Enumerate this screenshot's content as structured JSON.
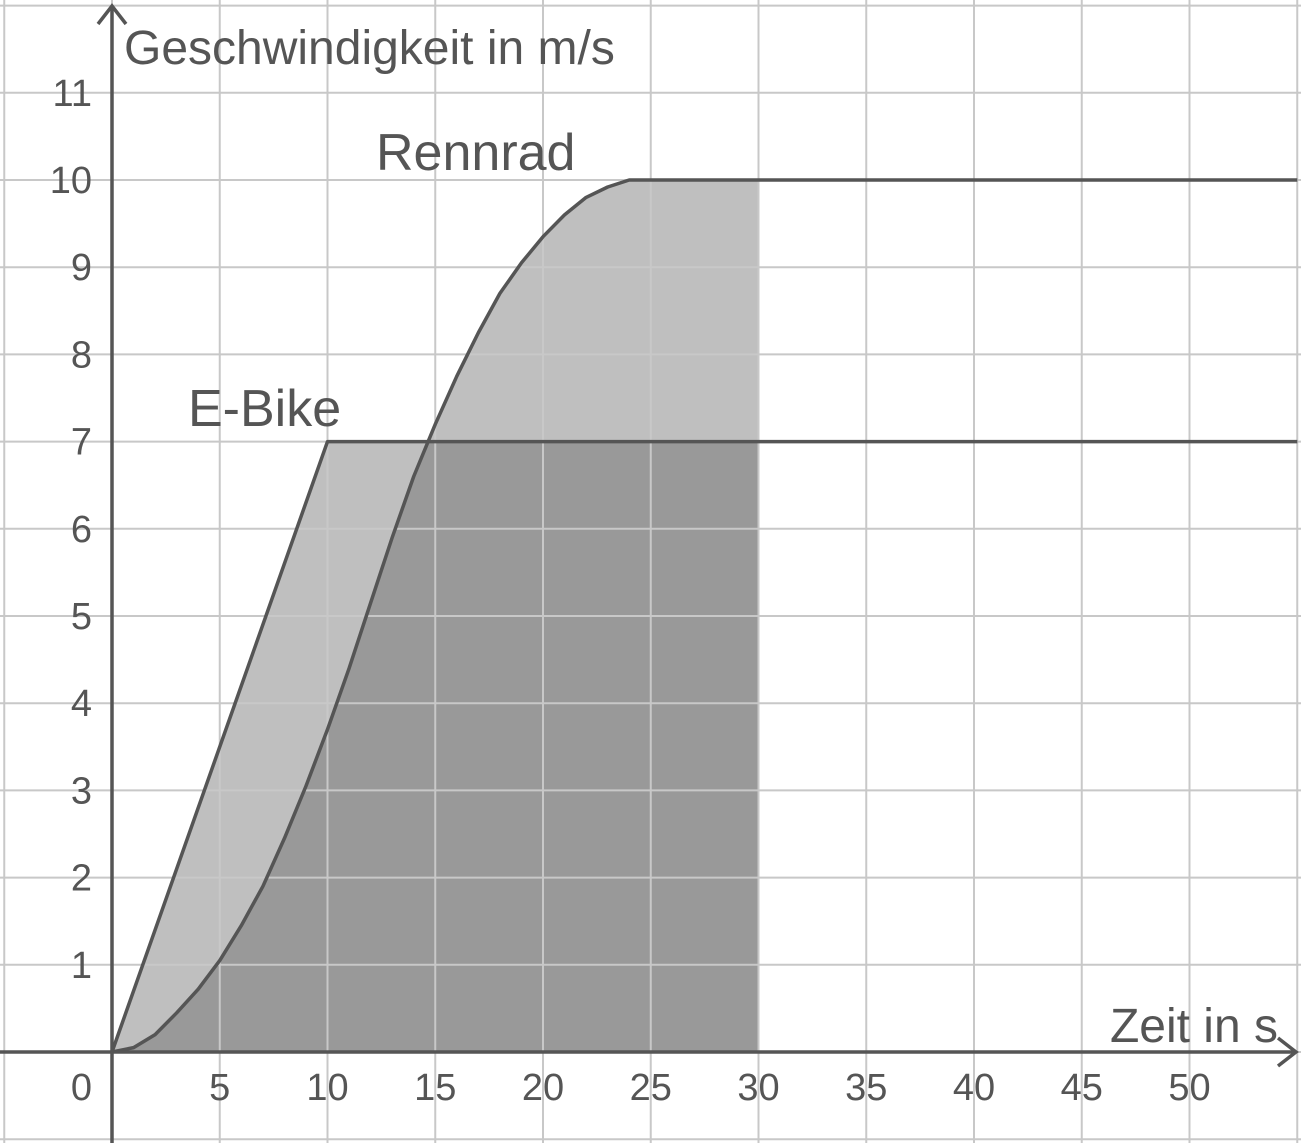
{
  "chart_data": {
    "type": "line",
    "xlabel": "Zeit in s",
    "ylabel": "Geschwindigkeit in m/s",
    "xlim": [
      0,
      55
    ],
    "ylim": [
      0,
      11
    ],
    "grid": true,
    "x_ticks": [
      "5",
      "10",
      "15",
      "20",
      "25",
      "30",
      "35",
      "40",
      "45",
      "50"
    ],
    "y_ticks": [
      "1",
      "2",
      "3",
      "4",
      "5",
      "6",
      "7",
      "8",
      "9",
      "10",
      "11"
    ],
    "origin_label": "0",
    "shaded_interval": [
      0,
      30
    ],
    "series": [
      {
        "name": "E-Bike",
        "points": [
          [
            0,
            0
          ],
          [
            10,
            7
          ],
          [
            55,
            7
          ]
        ]
      },
      {
        "name": "Rennrad",
        "points": [
          [
            0,
            0
          ],
          [
            1,
            0.05
          ],
          [
            2,
            0.2
          ],
          [
            3,
            0.45
          ],
          [
            4,
            0.72
          ],
          [
            5,
            1.05
          ],
          [
            6,
            1.45
          ],
          [
            7,
            1.9
          ],
          [
            8,
            2.45
          ],
          [
            9,
            3.05
          ],
          [
            10,
            3.7
          ],
          [
            11,
            4.4
          ],
          [
            12,
            5.15
          ],
          [
            13,
            5.9
          ],
          [
            14,
            6.6
          ],
          [
            15,
            7.2
          ],
          [
            16,
            7.75
          ],
          [
            17,
            8.25
          ],
          [
            18,
            8.7
          ],
          [
            19,
            9.05
          ],
          [
            20,
            9.35
          ],
          [
            21,
            9.6
          ],
          [
            22,
            9.8
          ],
          [
            23,
            9.92
          ],
          [
            24,
            10
          ],
          [
            25,
            10
          ],
          [
            55,
            10
          ]
        ]
      }
    ],
    "colors": {
      "fill_dark": "#999999",
      "fill_light": "#bfbfbf",
      "grid": "#c8c8c8",
      "line": "#555555"
    }
  }
}
